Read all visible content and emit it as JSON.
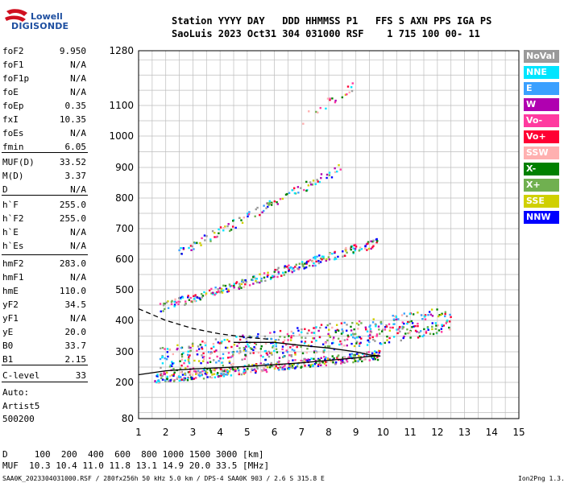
{
  "logo": {
    "line1": "Lowell",
    "line2": "DIGISONDE"
  },
  "header": {
    "row1": "Station YYYY DAY   DDD HHMMSS P1   FFS S AXN PPS IGA PS",
    "row2": "SaoLuis 2023 Oct31 304 031000 RSF    1 715 100 00- 11"
  },
  "params": [
    {
      "name": "foF2",
      "value": "9.950"
    },
    {
      "name": "foF1",
      "value": "N/A"
    },
    {
      "name": "foF1p",
      "value": "N/A"
    },
    {
      "name": "foE",
      "value": "N/A"
    },
    {
      "name": "foEp",
      "value": "0.35"
    },
    {
      "name": "fxI",
      "value": "10.35"
    },
    {
      "name": "foEs",
      "value": "N/A"
    },
    {
      "name": "fmin",
      "value": "6.05"
    },
    {
      "name": "MUF(D)",
      "value": "33.52"
    },
    {
      "name": "M(D)",
      "value": "3.37"
    },
    {
      "name": "D",
      "value": "N/A"
    },
    {
      "name": "h`F",
      "value": "255.0"
    },
    {
      "name": "h`F2",
      "value": "255.0"
    },
    {
      "name": "h`E",
      "value": "N/A"
    },
    {
      "name": "h`Es",
      "value": "N/A"
    },
    {
      "name": "hmF2",
      "value": "283.0"
    },
    {
      "name": "hmF1",
      "value": "N/A"
    },
    {
      "name": "hmE",
      "value": "110.0"
    },
    {
      "name": "yF2",
      "value": "34.5"
    },
    {
      "name": "yF1",
      "value": "N/A"
    },
    {
      "name": "yE",
      "value": "20.0"
    },
    {
      "name": "B0",
      "value": "33.7"
    },
    {
      "name": "B1",
      "value": "2.15"
    },
    {
      "name": "C-level",
      "value": "33"
    }
  ],
  "autoscale": {
    "label": "Auto:",
    "software": "Artist5",
    "version": "500200"
  },
  "legend": [
    {
      "label": "NoVal",
      "color": "#9a9a9a"
    },
    {
      "label": "NNE",
      "color": "#00e5ff"
    },
    {
      "label": "E",
      "color": "#3aa0ff"
    },
    {
      "label": "W",
      "color": "#b000b0"
    },
    {
      "label": "Vo-",
      "color": "#ff3aa0"
    },
    {
      "label": "Vo+",
      "color": "#ff0033"
    },
    {
      "label": "SSW",
      "color": "#ffb0b0"
    },
    {
      "label": "X-",
      "color": "#008000"
    },
    {
      "label": "X+",
      "color": "#70b050"
    },
    {
      "label": "SSE",
      "color": "#d0d000"
    },
    {
      "label": "NNW",
      "color": "#0000ff"
    }
  ],
  "muf_table": {
    "d_row": "D     100  200  400  600  800 1000 1500 3000 [km]",
    "muf_row": "MUF  10.3 10.4 11.0 11.8 13.1 14.9 20.0 33.5 [MHz]"
  },
  "footer": {
    "left": "SAA0K_2023304031000.RSF / 280fx256h 50 kHz 5.0 km / DPS-4 SAA0K 903 / 2.6 S 315.8 E",
    "right": "Ion2Png 1.3.17"
  },
  "chart_data": {
    "type": "scatter",
    "xlabel": "",
    "ylabel": "",
    "xlim": [
      1,
      15
    ],
    "ylim": [
      80,
      1280
    ],
    "x_ticks": [
      1,
      2,
      3,
      4,
      5,
      6,
      7,
      8,
      9,
      10,
      11,
      12,
      13,
      14,
      15
    ],
    "y_ticks": [
      80,
      200,
      300,
      400,
      500,
      600,
      700,
      800,
      900,
      1000,
      1100,
      1280
    ],
    "grid": true,
    "series": [
      {
        "name": "",
        "color": "#000000",
        "style": "solid",
        "x": [
          1.0,
          2.0,
          3.0,
          4.0,
          5.0,
          6.0,
          7.0,
          8.0,
          9.0,
          9.6,
          9.9
        ],
        "y": [
          225,
          238,
          244,
          248,
          252,
          258,
          264,
          272,
          280,
          286,
          286
        ]
      },
      {
        "name": "",
        "color": "#000000",
        "style": "solid",
        "x": [
          4.5,
          6.0,
          7.0,
          8.0,
          9.0,
          9.5,
          9.9
        ],
        "y": [
          330,
          330,
          320,
          312,
          300,
          290,
          286
        ]
      },
      {
        "name": "",
        "color": "#000000",
        "style": "dashed",
        "x": [
          1.0,
          2.0,
          3.0,
          4.0,
          5.0,
          5.8
        ],
        "y": [
          438,
          400,
          374,
          357,
          346,
          340
        ]
      }
    ],
    "echo_bands": [
      {
        "x0": 1.6,
        "x1": 10.0,
        "y0": 210,
        "y1": 290
      },
      {
        "x0": 1.8,
        "x1": 12.5,
        "y0": 270,
        "y1": 400
      },
      {
        "x0": 1.8,
        "x1": 9.8,
        "y0": 440,
        "y1": 655
      },
      {
        "x0": 2.5,
        "x1": 8.5,
        "y0": 620,
        "y1": 900
      },
      {
        "x0": 7.0,
        "x1": 9.0,
        "y0": 1050,
        "y1": 1170
      }
    ]
  }
}
